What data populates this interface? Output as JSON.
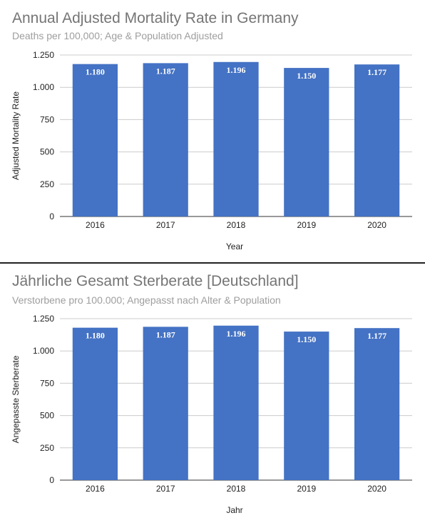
{
  "chart_data": [
    {
      "type": "bar",
      "title": "Annual Adjusted Mortality Rate in Germany",
      "subtitle": "Deaths per 100,000; Age & Population Adjusted",
      "xlabel": "Year",
      "ylabel": "Adjusted Mortality Rate",
      "categories": [
        "2016",
        "2017",
        "2018",
        "2019",
        "2020"
      ],
      "values": [
        1180,
        1187,
        1196,
        1150,
        1177
      ],
      "value_labels": [
        "1.180",
        "1.187",
        "1.196",
        "1.150",
        "1.177"
      ],
      "ylim": [
        0,
        1250
      ],
      "yticks": [
        0,
        250,
        500,
        750,
        1000,
        1250
      ],
      "ytick_labels": [
        "0",
        "250",
        "500",
        "750",
        "1.000",
        "1.250"
      ],
      "grid": true,
      "legend": "none",
      "bar_color": "#4472c4"
    },
    {
      "type": "bar",
      "title": "Jährliche Gesamt Sterberate [Deutschland]",
      "subtitle": "Verstorbene pro 100.000; Angepasst nach Alter & Population",
      "xlabel": "Jahr",
      "ylabel": "Angepasste Sterberate",
      "categories": [
        "2016",
        "2017",
        "2018",
        "2019",
        "2020"
      ],
      "values": [
        1180,
        1187,
        1196,
        1150,
        1177
      ],
      "value_labels": [
        "1.180",
        "1.187",
        "1.196",
        "1.150",
        "1.177"
      ],
      "ylim": [
        0,
        1250
      ],
      "yticks": [
        0,
        250,
        500,
        750,
        1000,
        1250
      ],
      "ytick_labels": [
        "0",
        "250",
        "500",
        "750",
        "1.000",
        "1.250"
      ],
      "grid": true,
      "legend": "none",
      "bar_color": "#4472c4"
    }
  ]
}
